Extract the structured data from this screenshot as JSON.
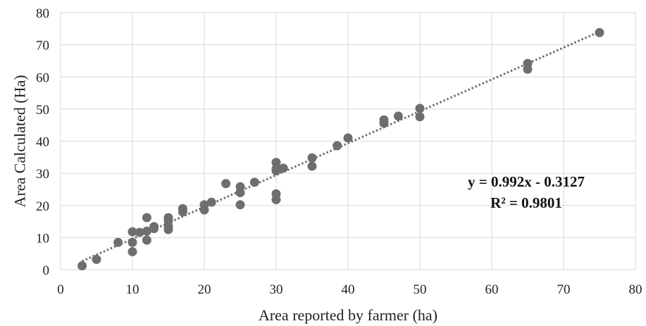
{
  "chart_data": {
    "type": "scatter",
    "xlabel": "Area reported by farmer (ha)",
    "ylabel": "Area Calculated (Ha)",
    "xlim": [
      0,
      80
    ],
    "ylim": [
      0,
      80
    ],
    "x_ticks": [
      0,
      10,
      20,
      30,
      40,
      50,
      60,
      70,
      80
    ],
    "y_ticks": [
      0,
      10,
      20,
      30,
      40,
      50,
      60,
      70,
      80
    ],
    "grid": true,
    "marker_color": "#6e6e6e",
    "trendline": {
      "type": "linear",
      "slope": 0.992,
      "intercept": -0.3127,
      "color": "#6e6e6e",
      "style": "dotted",
      "equation_label": "y = 0.992x - 0.3127",
      "r2_label": "R² = 0.9801"
    },
    "series": [
      {
        "points": [
          [
            3,
            1.2
          ],
          [
            5,
            3.2
          ],
          [
            8,
            8.5
          ],
          [
            10,
            5.6
          ],
          [
            10,
            8.5
          ],
          [
            10,
            11.8
          ],
          [
            11,
            11.6
          ],
          [
            12,
            9.2
          ],
          [
            12,
            12.0
          ],
          [
            12,
            16.2
          ],
          [
            13,
            12.8
          ],
          [
            13,
            13.4
          ],
          [
            15,
            12.5
          ],
          [
            15,
            13.5
          ],
          [
            15,
            15.2
          ],
          [
            15,
            16.2
          ],
          [
            17,
            18.0
          ],
          [
            17,
            19.0
          ],
          [
            20,
            18.6
          ],
          [
            20,
            20.2
          ],
          [
            21,
            21.0
          ],
          [
            23,
            26.8
          ],
          [
            25,
            20.2
          ],
          [
            25,
            24.0
          ],
          [
            25,
            25.8
          ],
          [
            27,
            27.2
          ],
          [
            30,
            21.8
          ],
          [
            30,
            23.6
          ],
          [
            30,
            30.8
          ],
          [
            30,
            31.4
          ],
          [
            30,
            33.4
          ],
          [
            31,
            31.6
          ],
          [
            35,
            32.2
          ],
          [
            35,
            34.8
          ],
          [
            38.5,
            38.6
          ],
          [
            40,
            41.0
          ],
          [
            45,
            45.6
          ],
          [
            45,
            46.6
          ],
          [
            47,
            47.8
          ],
          [
            50,
            47.6
          ],
          [
            50,
            50.2
          ],
          [
            65,
            62.4
          ],
          [
            65,
            64.2
          ],
          [
            75,
            73.8
          ]
        ]
      }
    ]
  }
}
